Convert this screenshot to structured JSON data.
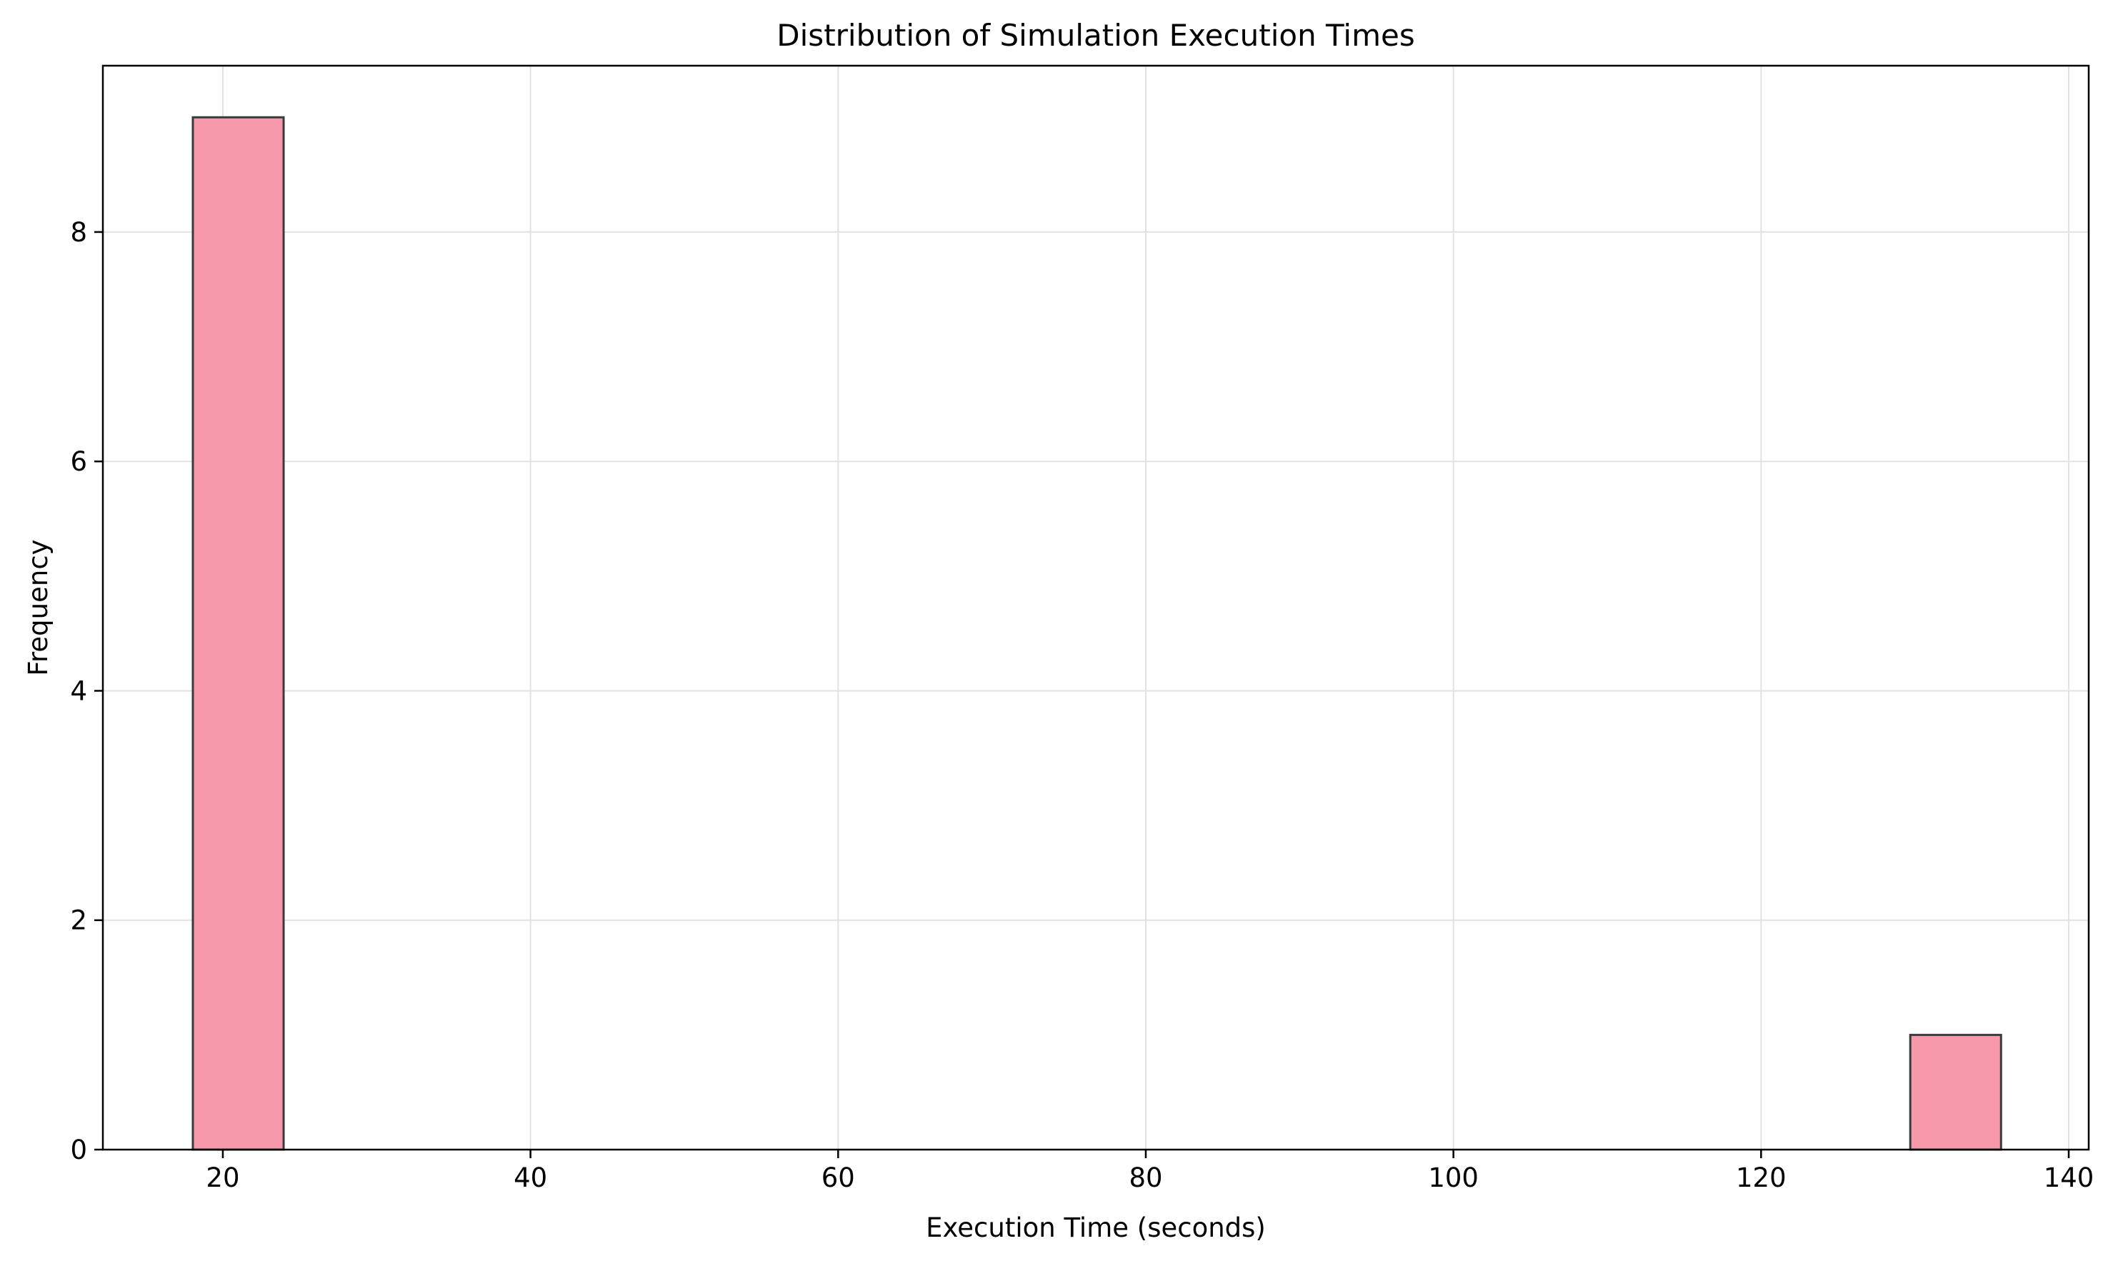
{
  "chart_data": {
    "type": "bar",
    "subtype": "histogram",
    "title": "Distribution of Simulation Execution Times",
    "xlabel": "Execution Time (seconds)",
    "ylabel": "Frequency",
    "xlim": [
      12.2,
      141.3
    ],
    "ylim": [
      0,
      9.45
    ],
    "xticks": [
      20,
      40,
      60,
      80,
      100,
      120,
      140
    ],
    "yticks": [
      0,
      2,
      4,
      6,
      8
    ],
    "grid": true,
    "legend": "none",
    "bins": [
      {
        "x0": 18.05,
        "x1": 23.95,
        "count": 9
      },
      {
        "x0": 129.7,
        "x1": 135.6,
        "count": 1
      }
    ],
    "colors": {
      "bar_fill": "#f899ab",
      "bar_edge": "#3b3b3b",
      "grid": "#e2e2e2",
      "axis": "#000000"
    }
  }
}
